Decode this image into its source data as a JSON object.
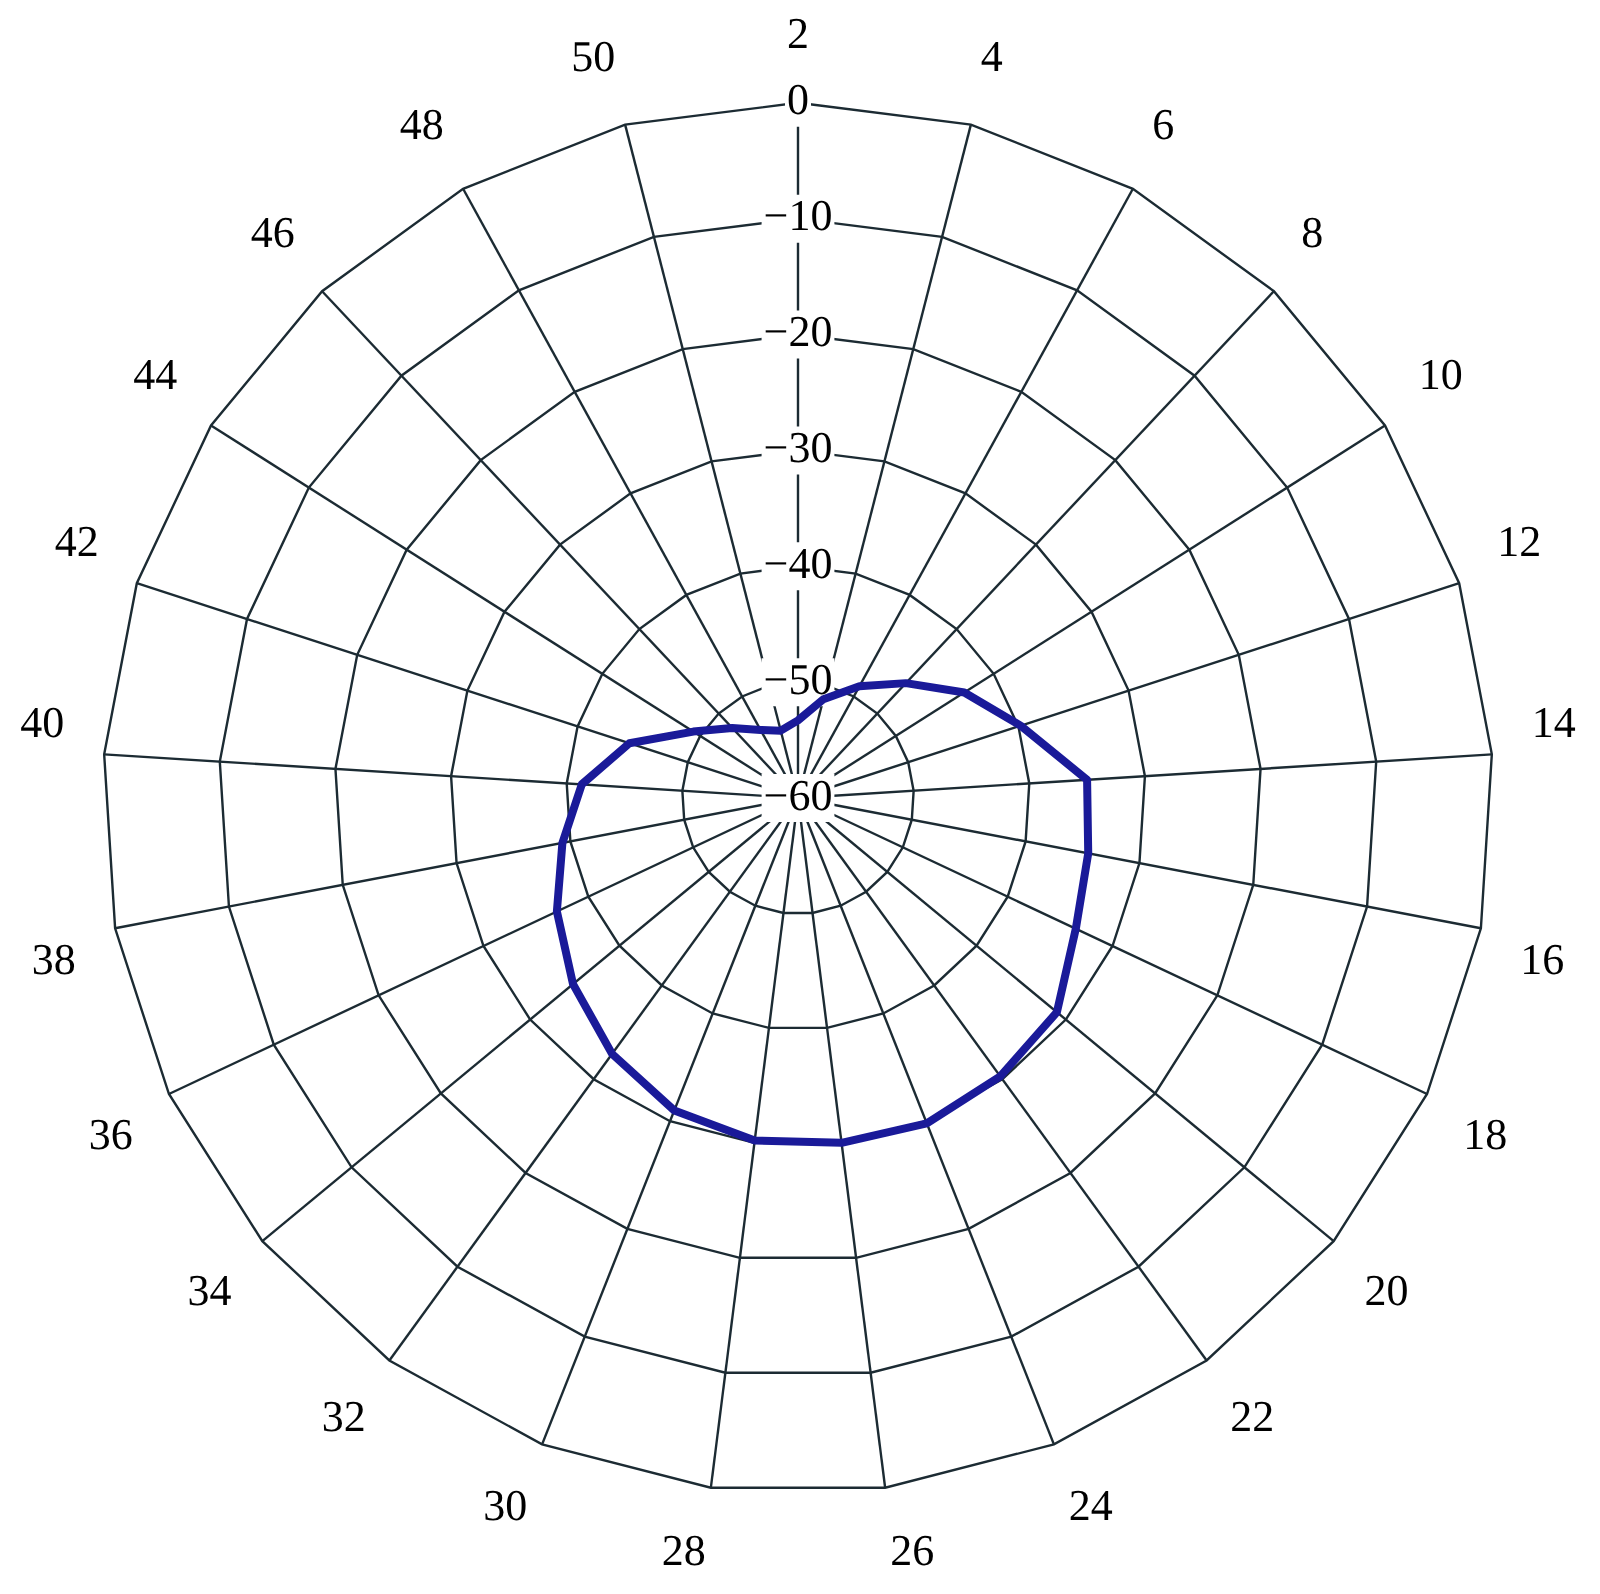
{
  "chart_data": {
    "type": "radar",
    "categories": [
      "2",
      "4",
      "6",
      "8",
      "10",
      "12",
      "14",
      "16",
      "18",
      "20",
      "22",
      "24",
      "26",
      "28",
      "30",
      "32",
      "34",
      "36",
      "38",
      "40",
      "42",
      "44",
      "46",
      "48",
      "50"
    ],
    "series": [
      {
        "color": "#1a1a99",
        "values": [
          -53.3,
          -51.2,
          -49,
          -46.4,
          -43,
          -39.8,
          -35,
          -34.5,
          -33.5,
          -31,
          -30.3,
          -29.8,
          -30,
          -30.2,
          -31,
          -32.7,
          -34.8,
          -37,
          -39.3,
          -41.3,
          -44.7,
          -49.3,
          -51.7,
          -53.3,
          -54
        ]
      }
    ],
    "ylim": [
      -60,
      0
    ],
    "yticks": [
      {
        "value": -60,
        "label": "−60"
      },
      {
        "value": -50,
        "label": "−50"
      },
      {
        "value": -40,
        "label": "−40"
      },
      {
        "value": -30,
        "label": "−30"
      },
      {
        "value": -20,
        "label": "−20"
      },
      {
        "value": -10,
        "label": "−10"
      },
      0
    ],
    "grid": true,
    "legend": false,
    "marker": "none",
    "line_style": "solid"
  }
}
